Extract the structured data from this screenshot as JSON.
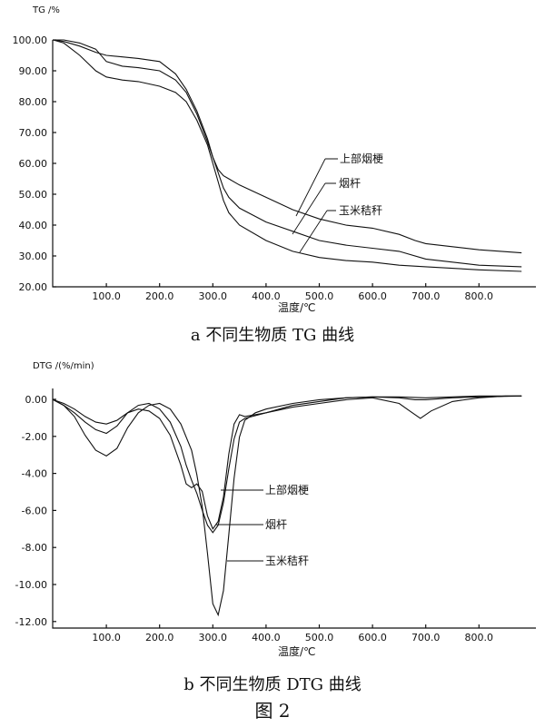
{
  "figure_label": "图 2",
  "chart_data": [
    {
      "type": "line",
      "caption": "a  不同生物质 TG 曲线",
      "ylabel": "TG /%",
      "xlabel": "温度/℃",
      "xlim": [
        0,
        900
      ],
      "ylim": [
        20,
        100
      ],
      "xticks": [
        "100.0",
        "200.0",
        "300.0",
        "400.0",
        "500.0",
        "600.0",
        "700.0",
        "800.0"
      ],
      "yticks": [
        "100.00",
        "90.00",
        "80.00",
        "70.00",
        "60.00",
        "50.00",
        "40.00",
        "30.00",
        "20.00"
      ],
      "grid": false,
      "annotations": [
        "上部烟梗",
        "烟杆",
        "玉米秸秆"
      ],
      "series": [
        {
          "name": "上部烟梗",
          "x": [
            0,
            20,
            50,
            80,
            100,
            130,
            160,
            200,
            230,
            250,
            270,
            290,
            300,
            310,
            320,
            330,
            350,
            400,
            450,
            500,
            550,
            600,
            650,
            680,
            700,
            750,
            800,
            880
          ],
          "values": [
            100,
            100,
            99,
            97,
            93,
            91.5,
            91,
            90,
            87,
            83,
            76,
            67,
            62,
            58,
            56,
            55,
            53,
            49,
            45,
            42,
            40,
            39,
            37,
            35,
            34,
            33,
            32,
            31
          ]
        },
        {
          "name": "烟杆",
          "x": [
            0,
            20,
            50,
            80,
            100,
            130,
            160,
            200,
            230,
            250,
            270,
            290,
            300,
            310,
            320,
            330,
            350,
            400,
            450,
            500,
            550,
            600,
            650,
            700,
            800,
            880
          ],
          "values": [
            100,
            99.5,
            98,
            96,
            95,
            94.5,
            94,
            93,
            89,
            84,
            77,
            68,
            62,
            57,
            52,
            49,
            45.5,
            41,
            38,
            35,
            33.5,
            32.5,
            31.5,
            29,
            27,
            26.5
          ]
        },
        {
          "name": "玉米秸秆",
          "x": [
            0,
            20,
            50,
            80,
            100,
            130,
            160,
            200,
            230,
            250,
            270,
            290,
            300,
            310,
            320,
            330,
            350,
            400,
            450,
            500,
            550,
            600,
            650,
            700,
            800,
            880
          ],
          "values": [
            100,
            99,
            95,
            90,
            88,
            87,
            86.5,
            85,
            83,
            80,
            74,
            66,
            60,
            54,
            48,
            44,
            40,
            35,
            31.5,
            29.5,
            28.5,
            28,
            27,
            26.5,
            25.5,
            25
          ]
        }
      ]
    },
    {
      "type": "line",
      "caption": "b  不同生物质 DTG 曲线",
      "ylabel": "DTG /(%/min)",
      "xlabel": "温度/℃",
      "xlim": [
        0,
        900
      ],
      "ylim": [
        -12.5,
        0.3
      ],
      "xticks": [
        "100.0",
        "200.0",
        "300.0",
        "400.0",
        "500.0",
        "600.0",
        "700.0",
        "800.0"
      ],
      "yticks": [
        "0.00",
        "-2.00",
        "-4.00",
        "-6.00",
        "-8.00",
        "-10.00",
        "-12.00"
      ],
      "grid": false,
      "annotations": [
        "上部烟梗",
        "烟杆",
        "玉米秸秆"
      ],
      "series": [
        {
          "name": "上部烟梗",
          "x": [
            0,
            20,
            40,
            60,
            80,
            100,
            120,
            140,
            160,
            180,
            200,
            220,
            240,
            250,
            260,
            270,
            280,
            290,
            300,
            310,
            320,
            330,
            340,
            350,
            360,
            400,
            450,
            500,
            550,
            600,
            650,
            670,
            690,
            710,
            750,
            800,
            850,
            880
          ],
          "values": [
            -0.3,
            -0.5,
            -0.8,
            -1.2,
            -1.5,
            -1.6,
            -1.4,
            -1.0,
            -0.8,
            -0.9,
            -1.3,
            -2.2,
            -3.8,
            -4.8,
            -5.0,
            -4.8,
            -5.2,
            -6.5,
            -7.2,
            -6.8,
            -5.5,
            -3.2,
            -1.6,
            -1.1,
            -1.2,
            -1.0,
            -0.7,
            -0.5,
            -0.3,
            -0.2,
            -0.5,
            -0.9,
            -1.3,
            -0.9,
            -0.4,
            -0.2,
            -0.1,
            -0.1
          ]
        },
        {
          "name": "烟杆",
          "x": [
            0,
            20,
            40,
            60,
            80,
            100,
            120,
            140,
            160,
            180,
            200,
            220,
            240,
            250,
            260,
            270,
            280,
            290,
            300,
            310,
            320,
            330,
            340,
            350,
            360,
            400,
            450,
            500,
            550,
            600,
            650,
            680,
            700,
            750,
            800,
            880
          ],
          "values": [
            -0.3,
            -0.6,
            -1.0,
            -1.5,
            -1.9,
            -2.1,
            -1.7,
            -1.0,
            -0.6,
            -0.5,
            -0.8,
            -1.5,
            -2.8,
            -3.8,
            -4.6,
            -5.3,
            -6.2,
            -7.0,
            -7.4,
            -7.0,
            -5.8,
            -4.0,
            -2.4,
            -1.5,
            -1.3,
            -1.0,
            -0.6,
            -0.4,
            -0.2,
            -0.15,
            -0.2,
            -0.3,
            -0.3,
            -0.2,
            -0.15,
            -0.1
          ]
        },
        {
          "name": "玉米秸秆",
          "x": [
            0,
            20,
            40,
            60,
            80,
            100,
            120,
            140,
            160,
            180,
            200,
            220,
            240,
            260,
            270,
            280,
            290,
            300,
            310,
            320,
            330,
            340,
            350,
            360,
            380,
            400,
            450,
            500,
            550,
            600,
            650,
            700,
            750,
            800,
            880
          ],
          "values": [
            -0.3,
            -0.6,
            -1.2,
            -2.2,
            -3.0,
            -3.3,
            -2.9,
            -1.8,
            -1.0,
            -0.6,
            -0.5,
            -0.8,
            -1.6,
            -3.0,
            -4.3,
            -6.0,
            -8.5,
            -11.2,
            -11.8,
            -10.5,
            -7.5,
            -4.5,
            -2.3,
            -1.4,
            -1.0,
            -0.8,
            -0.5,
            -0.3,
            -0.2,
            -0.15,
            -0.15,
            -0.2,
            -0.15,
            -0.1,
            -0.1
          ]
        }
      ]
    }
  ]
}
